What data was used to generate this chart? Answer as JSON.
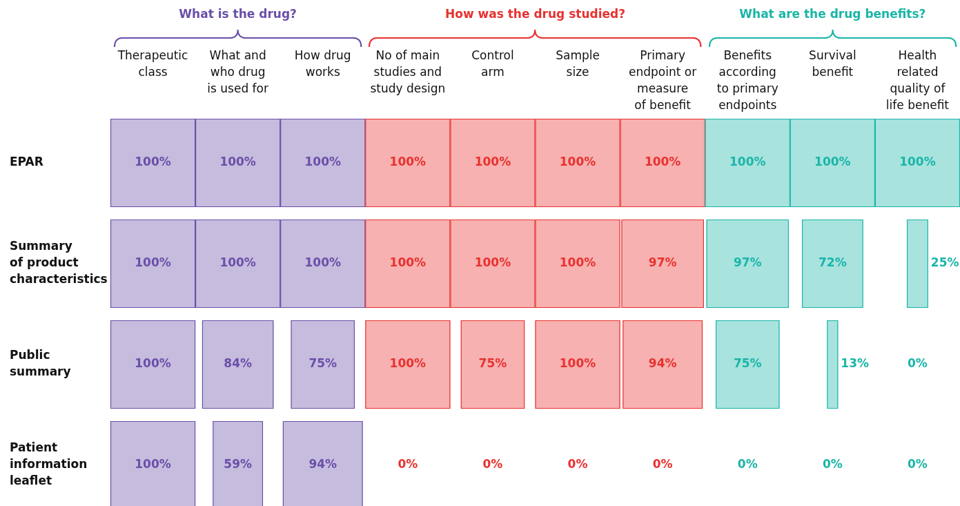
{
  "chart_data": {
    "type": "heatmap",
    "annotations": [
      "What is the drug?",
      "How was the drug studied?",
      "What are the drug benefits?"
    ],
    "categories": [
      "Therapeutic\nclass",
      "What and\nwho drug\nis used for",
      "How drug\nworks",
      "No of main\nstudies and\nstudy design",
      "Control\narm",
      "Sample\nsize",
      "Primary\nendpoint or\nmeasure\nof benefit",
      "Benefits\naccording\nto primary\nendpoints",
      "Survival\nbenefit",
      "Health\nrelated\nquality of\nlife benefit"
    ],
    "colors": [
      "#6a4fa8",
      "#6a4fa8",
      "#6a4fa8",
      "#e8312f",
      "#e8312f",
      "#e8312f",
      "#e8312f",
      "#1ab5a8",
      "#1ab5a8",
      "#1ab5a8"
    ],
    "y_categories": [
      "EPAR",
      "Summary\nof product\ncharacteristics",
      "Public\nsummary",
      "Patient\ninformation\nleaflet"
    ],
    "cells": [
      [
        100,
        100,
        100,
        100,
        100,
        100,
        100,
        100,
        100,
        100
      ],
      [
        100,
        100,
        100,
        100,
        100,
        100,
        97,
        97,
        72,
        25
      ],
      [
        100,
        84,
        75,
        100,
        75,
        100,
        94,
        75,
        13,
        0
      ],
      [
        100,
        59,
        94,
        0,
        0,
        0,
        0,
        0,
        0,
        0
      ]
    ],
    "cell_labels": [
      [
        "100%",
        "100%",
        "100%",
        "100%",
        "100%",
        "100%",
        "100%",
        "100%",
        "100%",
        "100%"
      ],
      [
        "100%",
        "100%",
        "100%",
        "100%",
        "100%",
        "100%",
        "97%",
        "97%",
        "72%",
        "25%"
      ],
      [
        "100%",
        "84%",
        "75%",
        "100%",
        "75%",
        "100%",
        "94%",
        "75%",
        "13%",
        "0%"
      ],
      [
        "100%",
        "59%",
        "94%",
        "0%",
        "0%",
        "0%",
        "0%",
        "0%",
        "0%",
        "0%"
      ]
    ]
  }
}
